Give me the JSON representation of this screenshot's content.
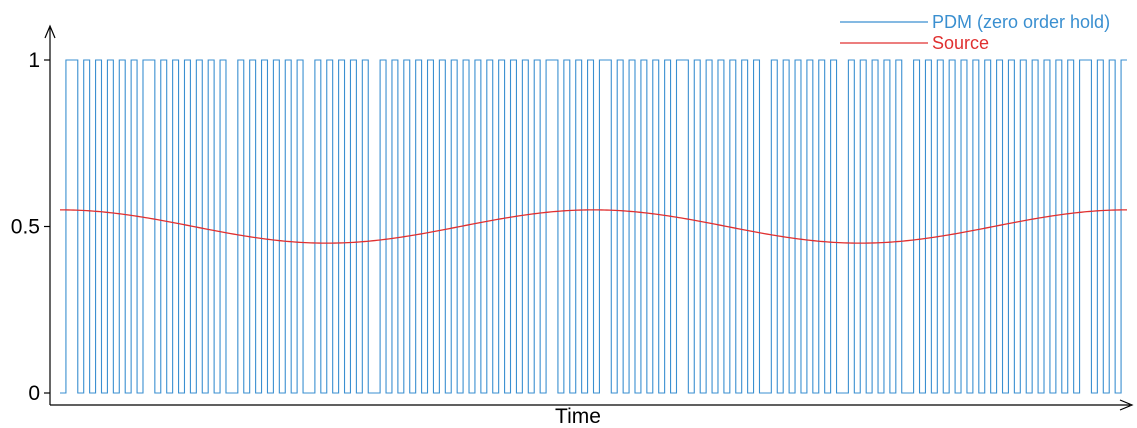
{
  "chart_data": {
    "type": "line",
    "title": "",
    "xlabel": "Time",
    "ylabel": "",
    "yticks": [
      {
        "value": 0,
        "label": "0"
      },
      {
        "value": 0.5,
        "label": "0.5"
      },
      {
        "value": 1,
        "label": "1"
      }
    ],
    "ylim": [
      -0.02,
      1.07
    ],
    "grid": false,
    "legend_position": "top-right",
    "series": [
      {
        "name": "PDM (zero order hold)",
        "color": "#3a8fd0",
        "style": "step",
        "samples": 180,
        "description_level": "pulse density proportional to Source"
      },
      {
        "name": "Source",
        "color": "#e03030",
        "style": "line",
        "offset": 0.5,
        "amplitude": 0.05,
        "cycles": 2.0
      }
    ]
  }
}
